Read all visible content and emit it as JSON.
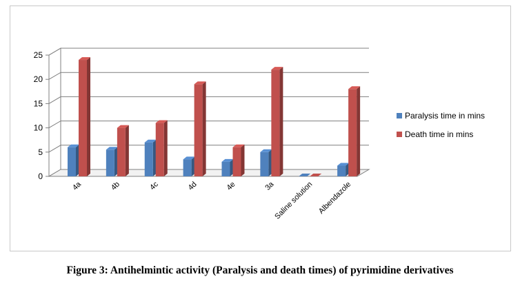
{
  "caption": "Figure 3: Antihelmintic activity (Paralysis and death times) of pyrimidine derivatives",
  "chart_data": {
    "type": "bar",
    "style": "3d-clustered-column",
    "categories": [
      "4a",
      "4b",
      "4c",
      "4d",
      "4e",
      "3a",
      "Saline solution",
      "Albendazole"
    ],
    "series": [
      {
        "name": "Paralysis time in mins",
        "color": "#4f81bd",
        "values": [
          6,
          5.5,
          7,
          3.5,
          3,
          5,
          0,
          2.2
        ]
      },
      {
        "name": "Death time in mins",
        "color": "#c0504d",
        "values": [
          24,
          10,
          11,
          19,
          6,
          22,
          0,
          18
        ]
      }
    ],
    "yticks": [
      "0",
      "5",
      "10",
      "15",
      "20",
      "25"
    ],
    "ylim": [
      0,
      25
    ],
    "grid": true,
    "legend_position": "right",
    "title": "",
    "xlabel": "",
    "ylabel": ""
  }
}
